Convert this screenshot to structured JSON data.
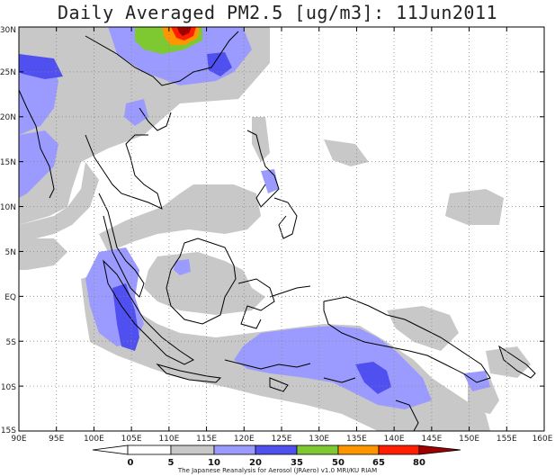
{
  "title": "Daily Averaged PM2.5 [ug/m3]: 11Jun2011",
  "map": {
    "lon_range": [
      90,
      160
    ],
    "lat_range": [
      -15,
      30
    ],
    "lon_ticks": [
      "90E",
      "95E",
      "100E",
      "105E",
      "110E",
      "115E",
      "120E",
      "125E",
      "130E",
      "135E",
      "140E",
      "145E",
      "150E",
      "155E",
      "160E"
    ],
    "lat_ticks": [
      "30N",
      "25N",
      "20N",
      "15N",
      "10N",
      "5N",
      "EQ",
      "5S",
      "10S",
      "15S"
    ],
    "grid": "dotted"
  },
  "colorbar": {
    "levels": [
      "0",
      "5",
      "10",
      "20",
      "35",
      "50",
      "65",
      "80"
    ],
    "colors": [
      "#ffffff",
      "#ffffff",
      "#c8c8c8",
      "#9b9bff",
      "#5050f0",
      "#7ec832",
      "#ff9600",
      "#ff1e00",
      "#a00000"
    ]
  },
  "credit": "The Japanese Reanalysis for Aerosol (JRAero) v1.0 MRI/KU RIAM"
}
